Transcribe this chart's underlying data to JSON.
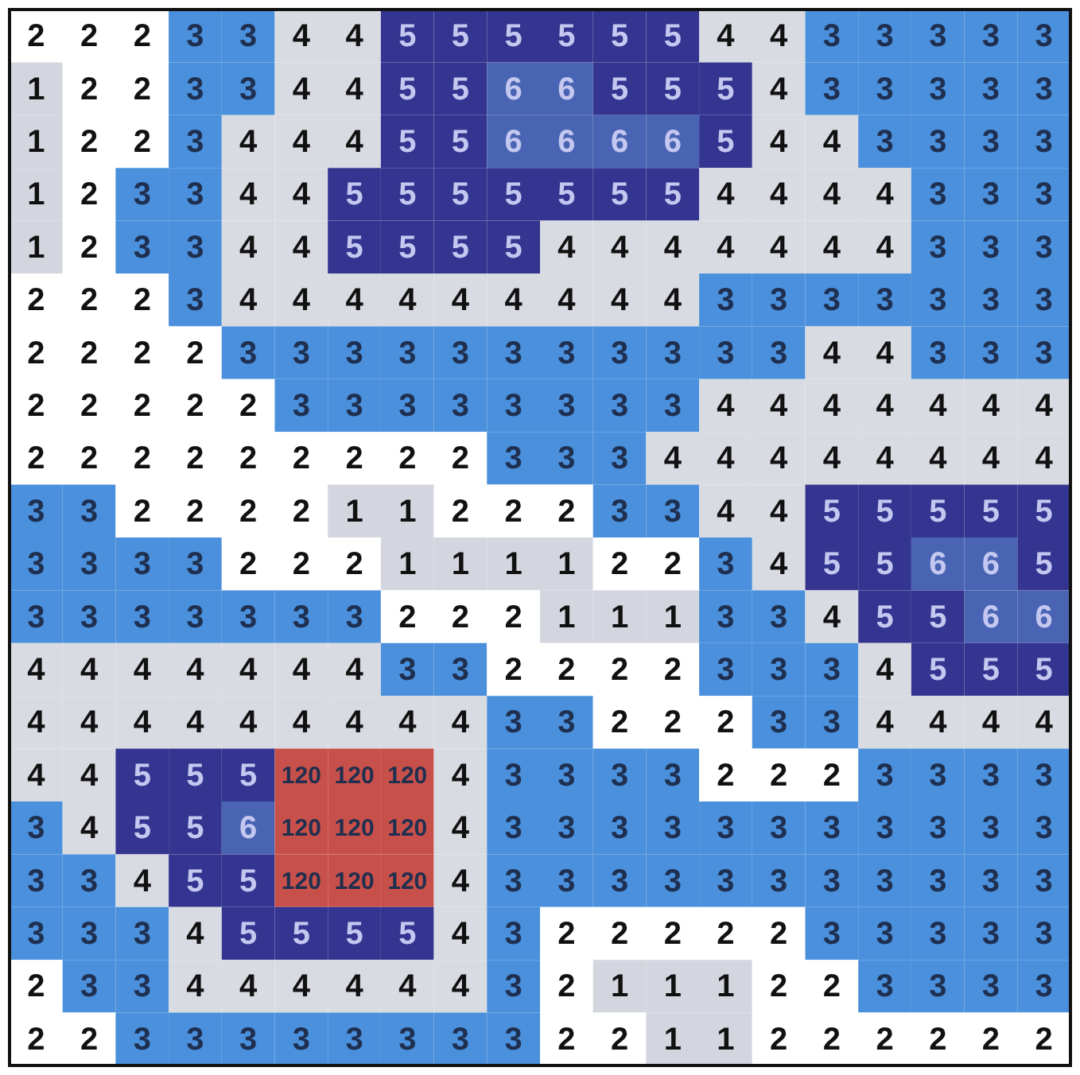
{
  "chart_data": {
    "type": "heatmap",
    "data_labels": true,
    "categories": [
      null,
      null,
      null,
      null,
      null,
      null,
      null,
      null,
      null,
      null,
      null,
      null,
      null,
      null,
      null,
      null,
      null,
      null,
      null,
      null
    ],
    "y_categories": [
      null,
      null,
      null,
      null,
      null,
      null,
      null,
      null,
      null,
      null,
      null,
      null,
      null,
      null,
      null,
      null,
      null,
      null,
      null,
      null
    ],
    "cells": [
      [
        2,
        2,
        2,
        3,
        3,
        4,
        4,
        5,
        5,
        5,
        5,
        5,
        5,
        4,
        4,
        3,
        3,
        3,
        3,
        3
      ],
      [
        1,
        2,
        2,
        3,
        3,
        4,
        4,
        5,
        5,
        6,
        6,
        5,
        5,
        5,
        4,
        3,
        3,
        3,
        3,
        3
      ],
      [
        1,
        2,
        2,
        3,
        4,
        4,
        4,
        5,
        5,
        6,
        6,
        6,
        6,
        5,
        4,
        4,
        3,
        3,
        3,
        3
      ],
      [
        1,
        2,
        3,
        3,
        4,
        4,
        5,
        5,
        5,
        5,
        5,
        5,
        5,
        4,
        4,
        4,
        4,
        3,
        3,
        3
      ],
      [
        1,
        2,
        3,
        3,
        4,
        4,
        5,
        5,
        5,
        5,
        4,
        4,
        4,
        4,
        4,
        4,
        4,
        3,
        3,
        3
      ],
      [
        2,
        2,
        2,
        3,
        4,
        4,
        4,
        4,
        4,
        4,
        4,
        4,
        4,
        3,
        3,
        3,
        3,
        3,
        3,
        3
      ],
      [
        2,
        2,
        2,
        2,
        3,
        3,
        3,
        3,
        3,
        3,
        3,
        3,
        3,
        3,
        3,
        4,
        4,
        3,
        3,
        3
      ],
      [
        2,
        2,
        2,
        2,
        2,
        3,
        3,
        3,
        3,
        3,
        3,
        3,
        3,
        4,
        4,
        4,
        4,
        4,
        4,
        4
      ],
      [
        2,
        2,
        2,
        2,
        2,
        2,
        2,
        2,
        2,
        3,
        3,
        3,
        4,
        4,
        4,
        4,
        4,
        4,
        4,
        4
      ],
      [
        3,
        3,
        2,
        2,
        2,
        2,
        1,
        1,
        2,
        2,
        2,
        3,
        3,
        4,
        4,
        5,
        5,
        5,
        5,
        5
      ],
      [
        3,
        3,
        3,
        3,
        2,
        2,
        2,
        1,
        1,
        1,
        1,
        2,
        2,
        3,
        4,
        5,
        5,
        6,
        6,
        5
      ],
      [
        3,
        3,
        3,
        3,
        3,
        3,
        3,
        2,
        2,
        2,
        1,
        1,
        1,
        3,
        3,
        4,
        5,
        5,
        6,
        6
      ],
      [
        4,
        4,
        4,
        4,
        4,
        4,
        4,
        3,
        3,
        2,
        2,
        2,
        2,
        3,
        3,
        3,
        4,
        5,
        5,
        5
      ],
      [
        4,
        4,
        4,
        4,
        4,
        4,
        4,
        4,
        4,
        3,
        3,
        2,
        2,
        2,
        3,
        3,
        4,
        4,
        4,
        4
      ],
      [
        4,
        4,
        5,
        5,
        5,
        120,
        120,
        120,
        4,
        3,
        3,
        3,
        3,
        2,
        2,
        2,
        3,
        3,
        3,
        3
      ],
      [
        3,
        4,
        5,
        5,
        6,
        120,
        120,
        120,
        4,
        3,
        3,
        3,
        3,
        3,
        3,
        3,
        3,
        3,
        3,
        3
      ],
      [
        3,
        3,
        4,
        5,
        5,
        120,
        120,
        120,
        4,
        3,
        3,
        3,
        3,
        3,
        3,
        3,
        3,
        3,
        3,
        3
      ],
      [
        3,
        3,
        3,
        4,
        5,
        5,
        5,
        5,
        4,
        3,
        2,
        2,
        2,
        2,
        2,
        3,
        3,
        3,
        3,
        3
      ],
      [
        2,
        3,
        3,
        4,
        4,
        4,
        4,
        4,
        4,
        3,
        2,
        1,
        1,
        1,
        2,
        2,
        3,
        3,
        3,
        3
      ],
      [
        2,
        2,
        3,
        3,
        3,
        3,
        3,
        3,
        3,
        3,
        2,
        2,
        1,
        1,
        2,
        2,
        2,
        2,
        2,
        2
      ]
    ],
    "colors": [
      [
        "#ffffff",
        "#ffffff",
        "#ffffff",
        "#4a90dc",
        "#4a90dc",
        "#d9dbe2",
        "#d9dbe2",
        "#343590",
        "#343590",
        "#343590",
        "#343590",
        "#343590",
        "#343590",
        "#d9dbe2",
        "#d9dbe2",
        "#4a90dc",
        "#4a90dc",
        "#4a90dc",
        "#4a90dc",
        "#4a90dc"
      ],
      [
        "#d3d6de",
        "#ffffff",
        "#ffffff",
        "#4a90dc",
        "#4a90dc",
        "#d9dbe2",
        "#d9dbe2",
        "#343590",
        "#343590",
        "#4a64b4",
        "#4a64b4",
        "#343590",
        "#343590",
        "#343590",
        "#d9dbe2",
        "#4a90dc",
        "#4a90dc",
        "#4a90dc",
        "#4a90dc",
        "#4a90dc"
      ],
      [
        "#d3d6de",
        "#ffffff",
        "#ffffff",
        "#4a90dc",
        "#d9dbe2",
        "#d9dbe2",
        "#d9dbe2",
        "#343590",
        "#343590",
        "#4a64b4",
        "#4a64b4",
        "#4a64b4",
        "#4a64b4",
        "#343590",
        "#d9dbe2",
        "#d9dbe2",
        "#4a90dc",
        "#4a90dc",
        "#4a90dc",
        "#4a90dc"
      ],
      [
        "#d3d6de",
        "#ffffff",
        "#4a90dc",
        "#4a90dc",
        "#d9dbe2",
        "#d9dbe2",
        "#343590",
        "#343590",
        "#343590",
        "#343590",
        "#343590",
        "#343590",
        "#343590",
        "#d9dbe2",
        "#d9dbe2",
        "#d9dbe2",
        "#d9dbe2",
        "#4a90dc",
        "#4a90dc",
        "#4a90dc"
      ],
      [
        "#d3d6de",
        "#ffffff",
        "#4a90dc",
        "#4a90dc",
        "#d9dbe2",
        "#d9dbe2",
        "#343590",
        "#343590",
        "#343590",
        "#343590",
        "#d9dbe2",
        "#d9dbe2",
        "#d9dbe2",
        "#d9dbe2",
        "#d9dbe2",
        "#d9dbe2",
        "#d9dbe2",
        "#4a90dc",
        "#4a90dc",
        "#4a90dc"
      ],
      [
        "#ffffff",
        "#ffffff",
        "#ffffff",
        "#4a90dc",
        "#d9dbe2",
        "#d9dbe2",
        "#d9dbe2",
        "#d9dbe2",
        "#d9dbe2",
        "#d9dbe2",
        "#d9dbe2",
        "#d9dbe2",
        "#d9dbe2",
        "#4a90dc",
        "#4a90dc",
        "#4a90dc",
        "#4a90dc",
        "#4a90dc",
        "#4a90dc",
        "#4a90dc"
      ],
      [
        "#ffffff",
        "#ffffff",
        "#ffffff",
        "#ffffff",
        "#4a90dc",
        "#4a90dc",
        "#4a90dc",
        "#4a90dc",
        "#4a90dc",
        "#4a90dc",
        "#4a90dc",
        "#4a90dc",
        "#4a90dc",
        "#4a90dc",
        "#4a90dc",
        "#d9dbe2",
        "#d9dbe2",
        "#4a90dc",
        "#4a90dc",
        "#4a90dc"
      ],
      [
        "#ffffff",
        "#ffffff",
        "#ffffff",
        "#ffffff",
        "#ffffff",
        "#4a90dc",
        "#4a90dc",
        "#4a90dc",
        "#4a90dc",
        "#4a90dc",
        "#4a90dc",
        "#4a90dc",
        "#4a90dc",
        "#d9dbe2",
        "#d9dbe2",
        "#d9dbe2",
        "#d9dbe2",
        "#d9dbe2",
        "#d9dbe2",
        "#d9dbe2"
      ],
      [
        "#ffffff",
        "#ffffff",
        "#ffffff",
        "#ffffff",
        "#ffffff",
        "#ffffff",
        "#ffffff",
        "#ffffff",
        "#ffffff",
        "#4a90dc",
        "#4a90dc",
        "#4a90dc",
        "#d9dbe2",
        "#d9dbe2",
        "#d9dbe2",
        "#d9dbe2",
        "#d9dbe2",
        "#d9dbe2",
        "#d9dbe2",
        "#d9dbe2"
      ],
      [
        "#4a90dc",
        "#4a90dc",
        "#ffffff",
        "#ffffff",
        "#ffffff",
        "#ffffff",
        "#d3d6de",
        "#d3d6de",
        "#ffffff",
        "#ffffff",
        "#ffffff",
        "#4a90dc",
        "#4a90dc",
        "#d9dbe2",
        "#d9dbe2",
        "#343590",
        "#343590",
        "#343590",
        "#343590",
        "#343590"
      ],
      [
        "#4a90dc",
        "#4a90dc",
        "#4a90dc",
        "#4a90dc",
        "#ffffff",
        "#ffffff",
        "#ffffff",
        "#d3d6de",
        "#d3d6de",
        "#d3d6de",
        "#d3d6de",
        "#ffffff",
        "#ffffff",
        "#4a90dc",
        "#d9dbe2",
        "#343590",
        "#343590",
        "#4a64b4",
        "#4a64b4",
        "#343590"
      ],
      [
        "#4a90dc",
        "#4a90dc",
        "#4a90dc",
        "#4a90dc",
        "#4a90dc",
        "#4a90dc",
        "#4a90dc",
        "#ffffff",
        "#ffffff",
        "#ffffff",
        "#d3d6de",
        "#d3d6de",
        "#d3d6de",
        "#4a90dc",
        "#4a90dc",
        "#d9dbe2",
        "#343590",
        "#343590",
        "#4a64b4",
        "#4a64b4"
      ],
      [
        "#d9dbe2",
        "#d9dbe2",
        "#d9dbe2",
        "#d9dbe2",
        "#d9dbe2",
        "#d9dbe2",
        "#d9dbe2",
        "#4a90dc",
        "#4a90dc",
        "#ffffff",
        "#ffffff",
        "#ffffff",
        "#ffffff",
        "#4a90dc",
        "#4a90dc",
        "#4a90dc",
        "#d9dbe2",
        "#343590",
        "#343590",
        "#343590"
      ],
      [
        "#d9dbe2",
        "#d9dbe2",
        "#d9dbe2",
        "#d9dbe2",
        "#d9dbe2",
        "#d9dbe2",
        "#d9dbe2",
        "#d9dbe2",
        "#d9dbe2",
        "#4a90dc",
        "#4a90dc",
        "#ffffff",
        "#ffffff",
        "#ffffff",
        "#4a90dc",
        "#4a90dc",
        "#d9dbe2",
        "#d9dbe2",
        "#d9dbe2",
        "#d9dbe2"
      ],
      [
        "#d9dbe2",
        "#d9dbe2",
        "#343590",
        "#343590",
        "#343590",
        "#c8504a",
        "#c8504a",
        "#c8504a",
        "#d9dbe2",
        "#4a90dc",
        "#4a90dc",
        "#4a90dc",
        "#4a90dc",
        "#ffffff",
        "#ffffff",
        "#ffffff",
        "#4a90dc",
        "#4a90dc",
        "#4a90dc",
        "#4a90dc"
      ],
      [
        "#4a90dc",
        "#d9dbe2",
        "#343590",
        "#343590",
        "#4a64b4",
        "#c8504a",
        "#c8504a",
        "#c8504a",
        "#d9dbe2",
        "#4a90dc",
        "#4a90dc",
        "#4a90dc",
        "#4a90dc",
        "#4a90dc",
        "#4a90dc",
        "#4a90dc",
        "#4a90dc",
        "#4a90dc",
        "#4a90dc",
        "#4a90dc"
      ],
      [
        "#4a90dc",
        "#4a90dc",
        "#d9dbe2",
        "#343590",
        "#343590",
        "#c8504a",
        "#c8504a",
        "#c8504a",
        "#d9dbe2",
        "#4a90dc",
        "#4a90dc",
        "#4a90dc",
        "#4a90dc",
        "#4a90dc",
        "#4a90dc",
        "#4a90dc",
        "#4a90dc",
        "#4a90dc",
        "#4a90dc",
        "#4a90dc"
      ],
      [
        "#4a90dc",
        "#4a90dc",
        "#4a90dc",
        "#d9dbe2",
        "#343590",
        "#343590",
        "#343590",
        "#343590",
        "#d9dbe2",
        "#4a90dc",
        "#ffffff",
        "#ffffff",
        "#ffffff",
        "#ffffff",
        "#ffffff",
        "#4a90dc",
        "#4a90dc",
        "#4a90dc",
        "#4a90dc",
        "#4a90dc"
      ],
      [
        "#ffffff",
        "#4a90dc",
        "#4a90dc",
        "#d9dbe2",
        "#d9dbe2",
        "#d9dbe2",
        "#d9dbe2",
        "#d9dbe2",
        "#d9dbe2",
        "#4a90dc",
        "#ffffff",
        "#d3d6de",
        "#d3d6de",
        "#d3d6de",
        "#ffffff",
        "#ffffff",
        "#4a90dc",
        "#4a90dc",
        "#4a90dc",
        "#4a90dc"
      ],
      [
        "#ffffff",
        "#ffffff",
        "#4a90dc",
        "#4a90dc",
        "#4a90dc",
        "#4a90dc",
        "#4a90dc",
        "#4a90dc",
        "#4a90dc",
        "#4a90dc",
        "#ffffff",
        "#ffffff",
        "#d3d6de",
        "#d3d6de",
        "#ffffff",
        "#ffffff",
        "#ffffff",
        "#ffffff",
        "#ffffff",
        "#ffffff"
      ]
    ]
  }
}
